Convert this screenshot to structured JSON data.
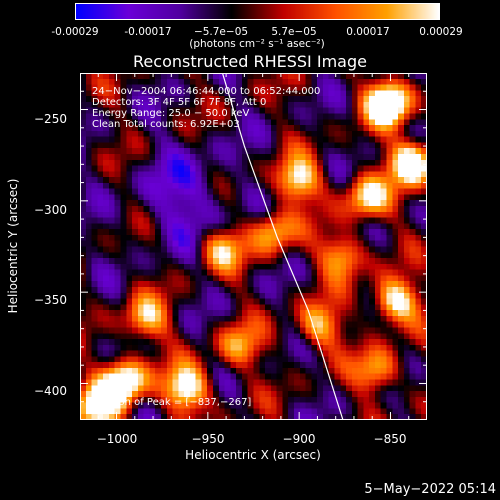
{
  "colorbar": {
    "ticks": [
      "-0.00029",
      "-0.00017",
      "−5.7e−05",
      "5.7e−05",
      "0.00017",
      "0.00029"
    ],
    "tick_values": [
      -0.00029,
      -0.00017,
      -5.7e-05,
      5.7e-05,
      0.00017,
      0.00029
    ],
    "range": [
      -0.00029,
      0.00029
    ],
    "unit": "(photons cm⁻² s⁻¹ asec⁻²)",
    "colors": [
      "#0000ff",
      "#6a00d8",
      "#5000a0",
      "#000000",
      "#c00000",
      "#ff5000",
      "#ffa000",
      "#ffffff"
    ]
  },
  "chart_data": {
    "type": "heatmap",
    "title": "Reconstructed RHESSI Image",
    "xlabel": "Heliocentric X (arcsec)",
    "ylabel": "Heliocentric Y (arcsec)",
    "xlim": [
      -1020,
      -830
    ],
    "ylim": [
      -420,
      -230
    ],
    "xticks": [
      -1000,
      -950,
      -900,
      -850
    ],
    "yticks": [
      -250,
      -300,
      -350,
      -400
    ],
    "xtick_labels": [
      "−1000",
      "−950",
      "−900",
      "−850"
    ],
    "ytick_labels": [
      "−250",
      "−300",
      "−350",
      "−400"
    ],
    "annotations": {
      "time": "24−Nov−2004 06:46:44.000 to 06:52:44.000",
      "detectors": "Detectors: 3F 4F 5F 6F 7F 8F, Att 0",
      "energy": "Energy Range: 25.0 − 50.0 keV",
      "clean": "Clean     Total counts: 6.92E+03",
      "peak": "Position of Peak = [−837,−267]"
    },
    "peak": [
      -837,
      -267
    ],
    "limb_curve": [
      [
        -942,
        -230
      ],
      [
        -930,
        -270
      ],
      [
        -912,
        -320
      ],
      [
        -895,
        -360
      ],
      [
        -876,
        -420
      ]
    ]
  },
  "footer": {
    "date": "5−May−2022 05:14"
  }
}
